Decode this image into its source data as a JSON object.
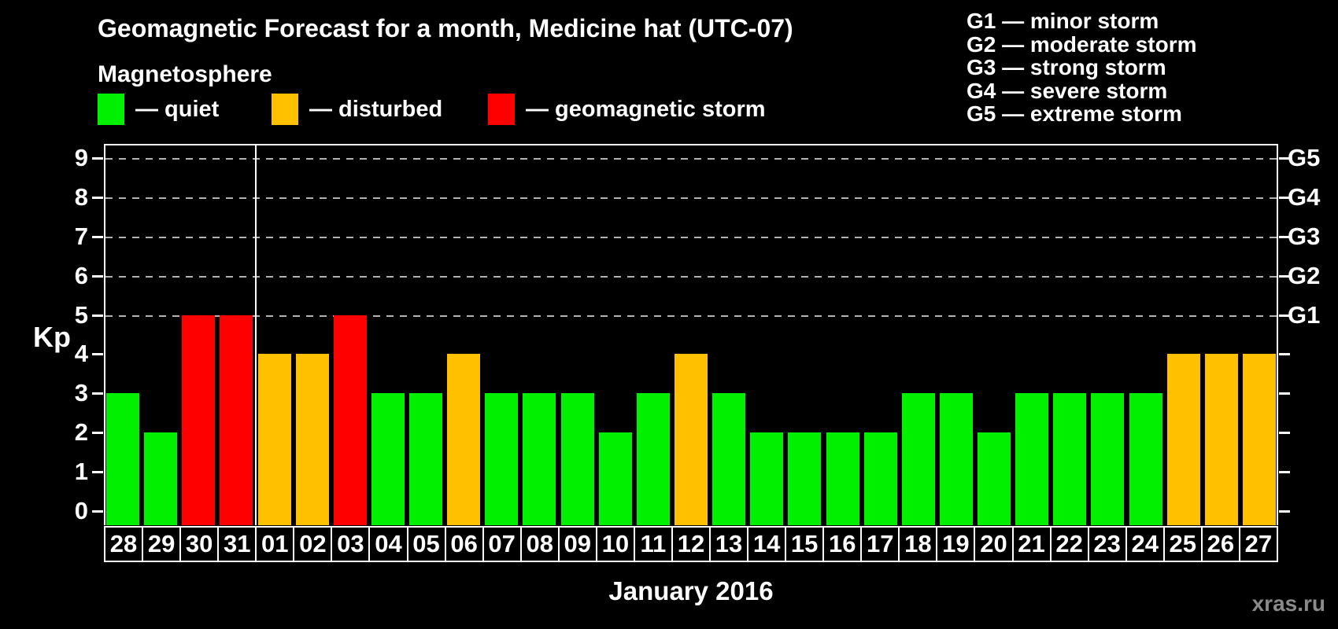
{
  "title": "Geomagnetic Forecast for a month, Medicine hat (UTC-07)",
  "subtitle": "Magnetosphere",
  "legend": {
    "items": [
      {
        "name": "quiet",
        "label": "— quiet",
        "color": "#00f000",
        "x": 124
      },
      {
        "name": "disturbed",
        "label": "— disturbed",
        "color": "#ffc000",
        "x": 345
      },
      {
        "name": "storm",
        "label": "— geomagnetic storm",
        "color": "#ff0000",
        "x": 620
      }
    ]
  },
  "storm_scale_legend": [
    "G1 — minor storm",
    "G2 — moderate storm",
    "G3 — strong storm",
    "G4 — severe storm",
    "G5 — extreme storm"
  ],
  "watermark": "xras.ru",
  "chart_data": {
    "type": "bar",
    "title": "Geomagnetic Forecast for a month, Medicine hat (UTC-07)",
    "xlabel": "January 2016",
    "ylabel": "Kp",
    "ylim": [
      0,
      9
    ],
    "yticks": [
      0,
      1,
      2,
      3,
      4,
      5,
      6,
      7,
      8,
      9
    ],
    "gridlines_at": [
      5,
      6,
      7,
      8,
      9
    ],
    "grid": "dashed-horizontal-only",
    "legend_position": "top",
    "right_axis_labels": [
      {
        "value": 5,
        "label": "G1"
      },
      {
        "value": 6,
        "label": "G2"
      },
      {
        "value": 7,
        "label": "G3"
      },
      {
        "value": 8,
        "label": "G4"
      },
      {
        "value": 9,
        "label": "G5"
      }
    ],
    "month_separator_after_index": 4,
    "categories": [
      "28",
      "29",
      "30",
      "31",
      "01",
      "02",
      "03",
      "04",
      "05",
      "06",
      "07",
      "08",
      "09",
      "10",
      "11",
      "12",
      "13",
      "14",
      "15",
      "16",
      "17",
      "18",
      "19",
      "20",
      "21",
      "22",
      "23",
      "24",
      "25",
      "26",
      "27"
    ],
    "values": [
      3,
      2,
      5,
      5,
      4,
      4,
      5,
      3,
      3,
      4,
      3,
      3,
      3,
      2,
      3,
      4,
      3,
      2,
      2,
      2,
      2,
      3,
      3,
      2,
      3,
      3,
      3,
      3,
      4,
      4,
      4
    ],
    "statuses": [
      "quiet",
      "quiet",
      "storm",
      "storm",
      "disturbed",
      "disturbed",
      "storm",
      "quiet",
      "quiet",
      "disturbed",
      "quiet",
      "quiet",
      "quiet",
      "quiet",
      "quiet",
      "disturbed",
      "quiet",
      "quiet",
      "quiet",
      "quiet",
      "quiet",
      "quiet",
      "quiet",
      "quiet",
      "quiet",
      "quiet",
      "quiet",
      "quiet",
      "disturbed",
      "disturbed",
      "disturbed"
    ],
    "status_colors": {
      "quiet": "#00f000",
      "disturbed": "#ffc000",
      "storm": "#ff0000"
    }
  }
}
